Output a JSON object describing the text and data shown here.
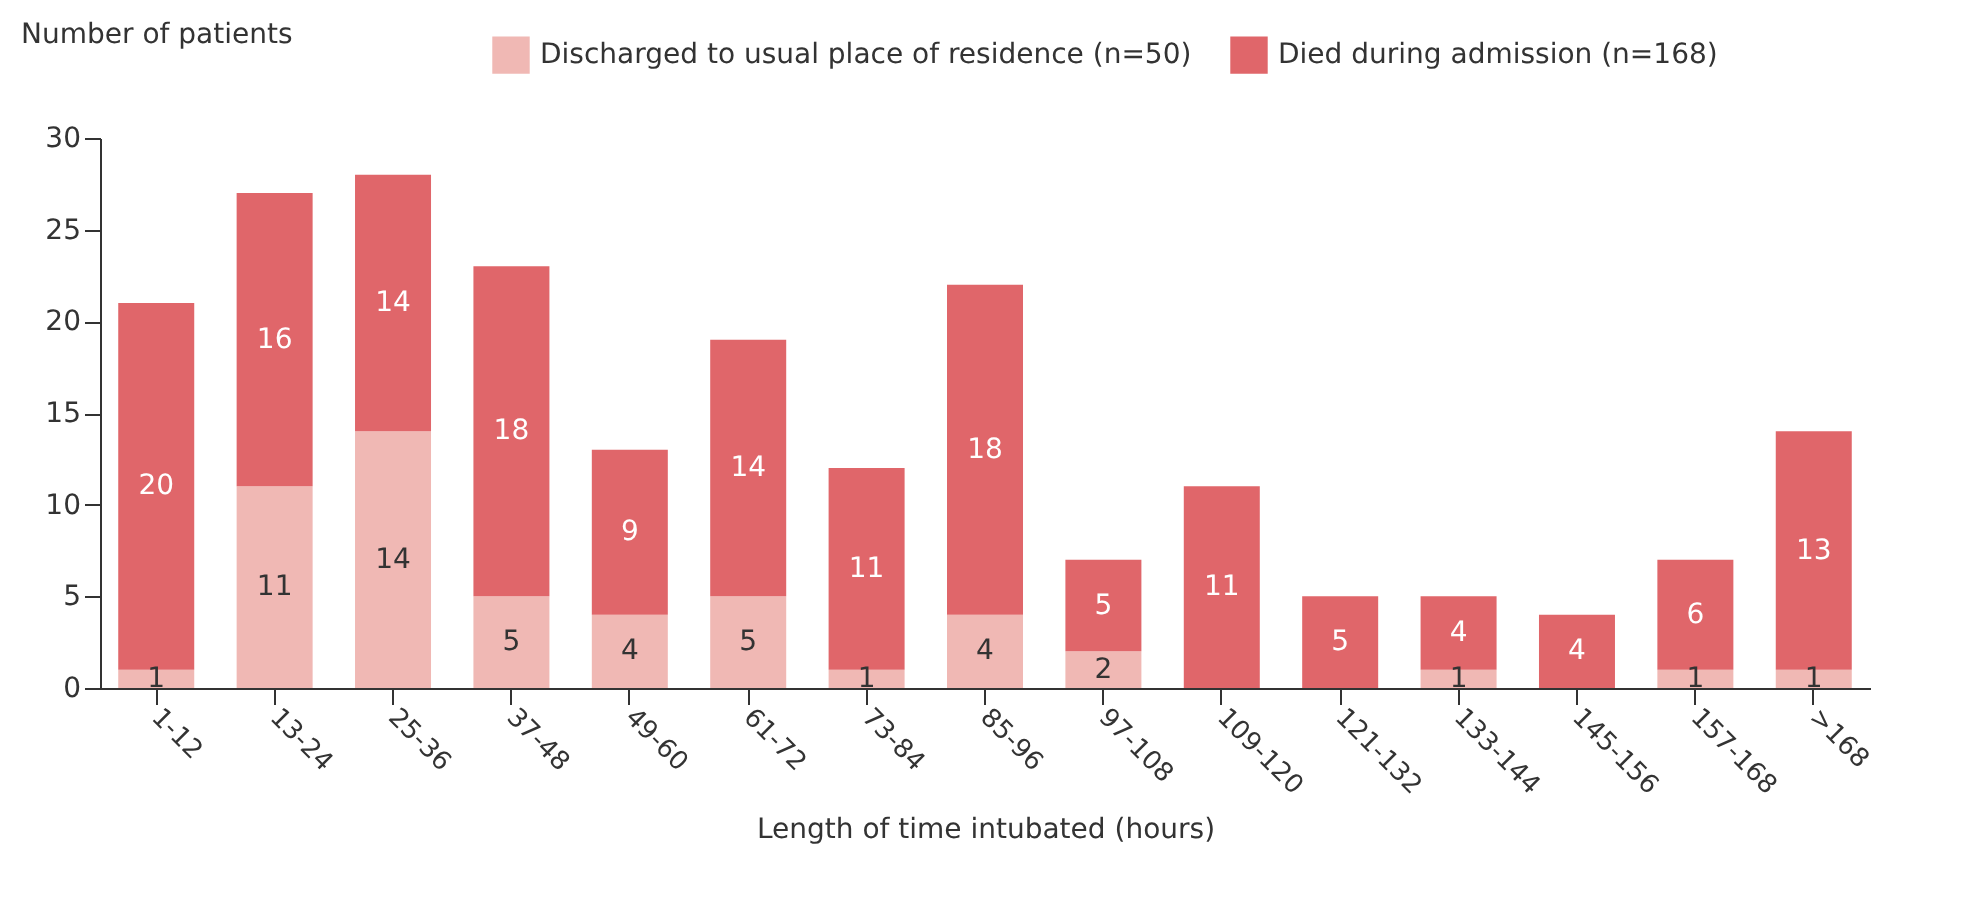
{
  "chart_data": {
    "type": "bar",
    "stacked": true,
    "xlabel": "Length of time intubated (hours)",
    "ylabel": "Number of patients",
    "categories": [
      "1-12",
      "13-24",
      "25-36",
      "37-48",
      "49-60",
      "61-72",
      "73-84",
      "85-96",
      "97-108",
      "109-120",
      "121-132",
      "133-144",
      "145-156",
      "157-168",
      ">168"
    ],
    "series": [
      {
        "name": "Discharged to usual place of residence (n=50)",
        "color": "#f0b8b4",
        "values": [
          1,
          11,
          14,
          5,
          4,
          5,
          1,
          4,
          2,
          null,
          null,
          1,
          null,
          1,
          1
        ]
      },
      {
        "name": "Died during admission (n=168)",
        "color": "#e0666a",
        "values": [
          20,
          16,
          14,
          18,
          9,
          14,
          11,
          18,
          5,
          11,
          5,
          4,
          4,
          6,
          13
        ]
      }
    ],
    "ylim": [
      0,
      30
    ],
    "yticks": [
      0,
      5,
      10,
      15,
      20,
      25,
      30
    ],
    "grid": false,
    "legend": "top right",
    "data_labels": true
  }
}
